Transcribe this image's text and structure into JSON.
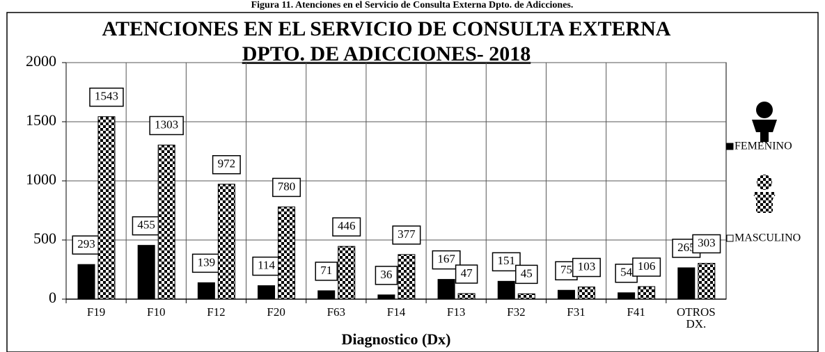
{
  "caption": "Figura 11. Atenciones en el Servicio de Consulta Externa Dpto. de Adicciones.",
  "chart_data": {
    "type": "bar",
    "title": "ATENCIONES EN EL SERVICIO DE CONSULTA EXTERNA",
    "subtitle": "DPTO. DE ADICCIONES-  2018",
    "x_label": "Diagnostico (Dx)",
    "categories": [
      "F19",
      "F10",
      "F12",
      "F20",
      "F63",
      "F14",
      "F13",
      "F32",
      "F31",
      "F41",
      "OTROS DX."
    ],
    "series": [
      {
        "name": "FEMENINO",
        "color": "#000000",
        "pattern": "solid",
        "values": [
          293,
          455,
          139,
          114,
          71,
          36,
          167,
          151,
          75,
          54,
          265
        ]
      },
      {
        "name": "MASCULINO",
        "color": "#000000",
        "pattern": "checker",
        "values": [
          1543,
          1303,
          972,
          780,
          446,
          377,
          47,
          45,
          103,
          106,
          303
        ]
      }
    ],
    "ylim": [
      0,
      2000
    ],
    "yticks": [
      0,
      500,
      1000,
      1500,
      2000
    ],
    "grid": true,
    "legend": "right"
  }
}
